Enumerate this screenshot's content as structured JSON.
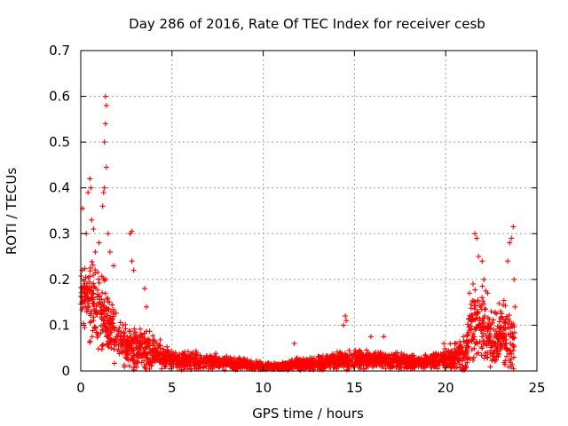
{
  "chart_data": {
    "type": "scatter",
    "title": "Day 286 of 2016, Rate Of TEC Index for receiver cesb",
    "xlabel": "GPS time / hours",
    "ylabel": "ROTI / TECUs",
    "xlim": [
      0,
      25
    ],
    "ylim": [
      0,
      0.7
    ],
    "xticks": [
      0,
      5,
      10,
      15,
      20,
      25
    ],
    "xtick_labels": [
      "0",
      "5",
      "10",
      "15",
      "20",
      "25"
    ],
    "yticks": [
      0,
      0.1,
      0.2,
      0.3,
      0.4,
      0.5,
      0.6,
      0.7
    ],
    "ytick_labels": [
      "0",
      "0.1",
      "0.2",
      "0.3",
      "0.4",
      "0.5",
      "0.6",
      "0.7"
    ],
    "grid": true,
    "marker": "+",
    "marker_color": "#ff0000",
    "profile_hours": [
      0,
      0.5,
      1,
      1.5,
      2,
      2.5,
      3,
      3.5,
      4,
      5,
      6,
      7,
      8,
      9,
      10,
      11,
      12,
      13,
      14,
      15,
      16,
      17,
      18,
      19,
      20,
      20.5,
      21,
      21.5,
      22,
      22.5,
      23,
      23.5,
      23.8
    ],
    "profile_median_roti": [
      0.17,
      0.16,
      0.14,
      0.1,
      0.07,
      0.05,
      0.05,
      0.05,
      0.04,
      0.025,
      0.022,
      0.02,
      0.018,
      0.015,
      0.01,
      0.01,
      0.015,
      0.018,
      0.022,
      0.025,
      0.025,
      0.022,
      0.02,
      0.022,
      0.025,
      0.03,
      0.04,
      0.1,
      0.1,
      0.06,
      0.08,
      0.07,
      0.06
    ],
    "profile_spread_roti": [
      0.06,
      0.08,
      0.09,
      0.06,
      0.05,
      0.04,
      0.04,
      0.05,
      0.03,
      0.02,
      0.02,
      0.015,
      0.013,
      0.012,
      0.008,
      0.008,
      0.012,
      0.014,
      0.016,
      0.018,
      0.018,
      0.016,
      0.015,
      0.016,
      0.02,
      0.025,
      0.04,
      0.08,
      0.07,
      0.06,
      0.06,
      0.07,
      0.06
    ],
    "peak_points": [
      {
        "x": 0.1,
        "y": 0.355
      },
      {
        "x": 0.3,
        "y": 0.3
      },
      {
        "x": 0.4,
        "y": 0.39
      },
      {
        "x": 0.5,
        "y": 0.42
      },
      {
        "x": 0.55,
        "y": 0.4
      },
      {
        "x": 0.6,
        "y": 0.33
      },
      {
        "x": 0.7,
        "y": 0.31
      },
      {
        "x": 0.8,
        "y": 0.26
      },
      {
        "x": 1.0,
        "y": 0.28
      },
      {
        "x": 1.2,
        "y": 0.36
      },
      {
        "x": 1.25,
        "y": 0.39
      },
      {
        "x": 1.3,
        "y": 0.4
      },
      {
        "x": 1.3,
        "y": 0.5
      },
      {
        "x": 1.35,
        "y": 0.54
      },
      {
        "x": 1.35,
        "y": 0.6
      },
      {
        "x": 1.4,
        "y": 0.58
      },
      {
        "x": 1.4,
        "y": 0.445
      },
      {
        "x": 1.5,
        "y": 0.3
      },
      {
        "x": 1.6,
        "y": 0.26
      },
      {
        "x": 1.8,
        "y": 0.23
      },
      {
        "x": 2.7,
        "y": 0.3
      },
      {
        "x": 2.8,
        "y": 0.305
      },
      {
        "x": 2.8,
        "y": 0.24
      },
      {
        "x": 2.9,
        "y": 0.22
      },
      {
        "x": 3.5,
        "y": 0.18
      },
      {
        "x": 3.6,
        "y": 0.14
      },
      {
        "x": 11.7,
        "y": 0.06
      },
      {
        "x": 14.4,
        "y": 0.1
      },
      {
        "x": 14.5,
        "y": 0.12
      },
      {
        "x": 14.55,
        "y": 0.11
      },
      {
        "x": 15.9,
        "y": 0.075
      },
      {
        "x": 16.6,
        "y": 0.075
      },
      {
        "x": 19.9,
        "y": 0.06
      },
      {
        "x": 20.5,
        "y": 0.06
      },
      {
        "x": 21.6,
        "y": 0.3
      },
      {
        "x": 21.7,
        "y": 0.29
      },
      {
        "x": 21.8,
        "y": 0.25
      },
      {
        "x": 21.5,
        "y": 0.19
      },
      {
        "x": 21.3,
        "y": 0.17
      },
      {
        "x": 22.0,
        "y": 0.24
      },
      {
        "x": 22.1,
        "y": 0.2
      },
      {
        "x": 22.2,
        "y": 0.175
      },
      {
        "x": 22.3,
        "y": 0.17
      },
      {
        "x": 22.5,
        "y": 0.13
      },
      {
        "x": 22.8,
        "y": 0.125
      },
      {
        "x": 23.0,
        "y": 0.13
      },
      {
        "x": 23.3,
        "y": 0.08
      },
      {
        "x": 23.4,
        "y": 0.24
      },
      {
        "x": 23.5,
        "y": 0.28
      },
      {
        "x": 23.6,
        "y": 0.29
      },
      {
        "x": 23.7,
        "y": 0.315
      },
      {
        "x": 23.75,
        "y": 0.2
      },
      {
        "x": 23.8,
        "y": 0.14
      }
    ]
  }
}
